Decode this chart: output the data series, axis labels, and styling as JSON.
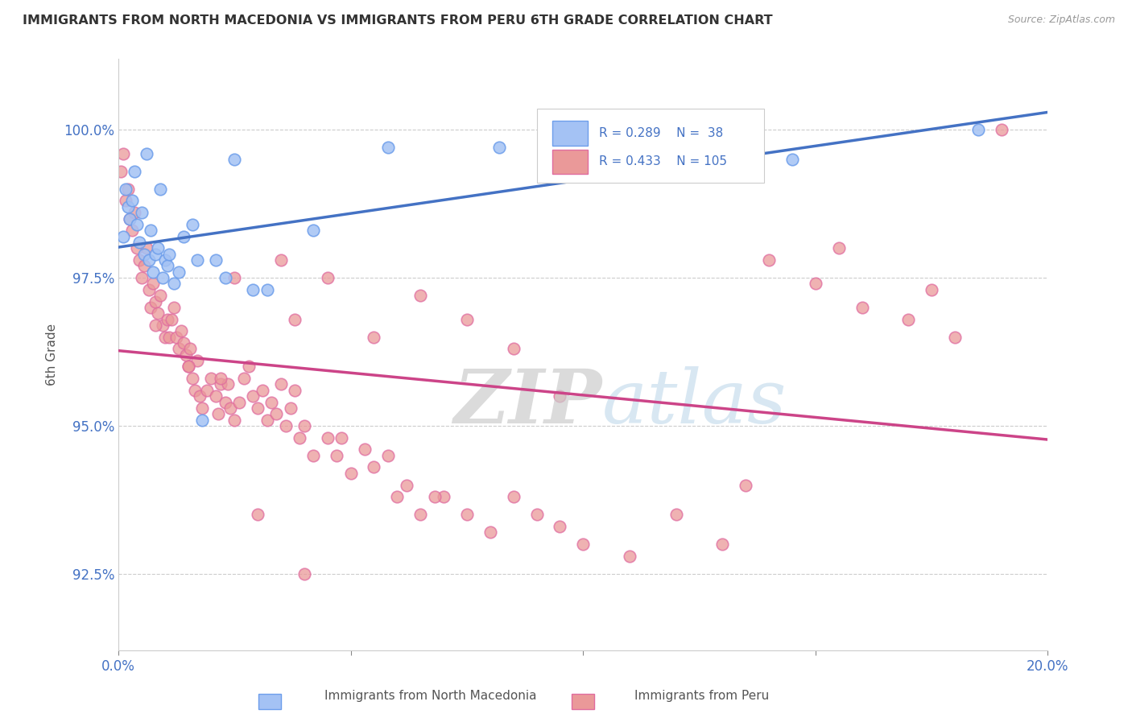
{
  "title": "IMMIGRANTS FROM NORTH MACEDONIA VS IMMIGRANTS FROM PERU 6TH GRADE CORRELATION CHART",
  "source": "Source: ZipAtlas.com",
  "ylabel": "6th Grade",
  "yaxis_values": [
    92.5,
    95.0,
    97.5,
    100.0
  ],
  "xlim": [
    0.0,
    20.0
  ],
  "ylim": [
    91.2,
    101.2
  ],
  "legend_R_blue": "0.289",
  "legend_N_blue": "38",
  "legend_R_pink": "0.433",
  "legend_N_pink": "105",
  "blue_color": "#a4c2f4",
  "pink_color": "#ea9999",
  "blue_edge": "#6d9eeb",
  "pink_edge": "#e06c9f",
  "trendline_blue": "#4472c4",
  "trendline_pink": "#cc4488",
  "blue_scatter_x": [
    0.1,
    0.15,
    0.2,
    0.25,
    0.3,
    0.35,
    0.4,
    0.45,
    0.5,
    0.55,
    0.6,
    0.65,
    0.7,
    0.75,
    0.8,
    0.85,
    0.9,
    0.95,
    1.0,
    1.05,
    1.1,
    1.2,
    1.3,
    1.4,
    1.6,
    1.7,
    1.8,
    2.1,
    2.3,
    2.5,
    2.9,
    3.2,
    4.2,
    5.8,
    8.2,
    9.5,
    14.5,
    18.5
  ],
  "blue_scatter_y": [
    98.2,
    99.0,
    98.7,
    98.5,
    98.8,
    99.3,
    98.4,
    98.1,
    98.6,
    97.9,
    99.6,
    97.8,
    98.3,
    97.6,
    97.9,
    98.0,
    99.0,
    97.5,
    97.8,
    97.7,
    97.9,
    97.4,
    97.6,
    98.2,
    98.4,
    97.8,
    95.1,
    97.8,
    97.5,
    99.5,
    97.3,
    97.3,
    98.3,
    99.7,
    99.7,
    99.8,
    99.5,
    100.0
  ],
  "pink_scatter_x": [
    0.05,
    0.1,
    0.15,
    0.2,
    0.25,
    0.3,
    0.35,
    0.4,
    0.45,
    0.5,
    0.55,
    0.6,
    0.65,
    0.7,
    0.75,
    0.8,
    0.85,
    0.9,
    0.95,
    1.0,
    1.05,
    1.1,
    1.15,
    1.2,
    1.25,
    1.3,
    1.35,
    1.4,
    1.45,
    1.5,
    1.55,
    1.6,
    1.65,
    1.7,
    1.75,
    1.8,
    1.9,
    2.0,
    2.1,
    2.15,
    2.2,
    2.3,
    2.35,
    2.4,
    2.5,
    2.6,
    2.7,
    2.8,
    2.9,
    3.0,
    3.1,
    3.2,
    3.3,
    3.4,
    3.5,
    3.6,
    3.7,
    3.8,
    3.9,
    4.0,
    4.2,
    4.5,
    4.7,
    5.0,
    5.3,
    5.5,
    5.8,
    6.0,
    6.2,
    6.5,
    7.0,
    7.5,
    8.0,
    8.5,
    9.0,
    9.5,
    10.0,
    11.0,
    12.0,
    13.0,
    14.0,
    15.0,
    16.0,
    17.0,
    18.0,
    19.0,
    3.8,
    4.5,
    5.5,
    6.5,
    7.5,
    8.5,
    2.5,
    3.5,
    4.8,
    0.8,
    1.5,
    2.2,
    3.0,
    4.0,
    6.8,
    9.5,
    13.5,
    15.5,
    17.5
  ],
  "pink_scatter_y": [
    99.3,
    99.6,
    98.8,
    99.0,
    98.5,
    98.3,
    98.6,
    98.0,
    97.8,
    97.5,
    97.7,
    98.0,
    97.3,
    97.0,
    97.4,
    97.1,
    96.9,
    97.2,
    96.7,
    96.5,
    96.8,
    96.5,
    96.8,
    97.0,
    96.5,
    96.3,
    96.6,
    96.4,
    96.2,
    96.0,
    96.3,
    95.8,
    95.6,
    96.1,
    95.5,
    95.3,
    95.6,
    95.8,
    95.5,
    95.2,
    95.7,
    95.4,
    95.7,
    95.3,
    95.1,
    95.4,
    95.8,
    96.0,
    95.5,
    95.3,
    95.6,
    95.1,
    95.4,
    95.2,
    95.7,
    95.0,
    95.3,
    95.6,
    94.8,
    95.0,
    94.5,
    94.8,
    94.5,
    94.2,
    94.6,
    94.3,
    94.5,
    93.8,
    94.0,
    93.5,
    93.8,
    93.5,
    93.2,
    93.8,
    93.5,
    93.3,
    93.0,
    92.8,
    93.5,
    93.0,
    97.8,
    97.4,
    97.0,
    96.8,
    96.5,
    100.0,
    96.8,
    97.5,
    96.5,
    97.2,
    96.8,
    96.3,
    97.5,
    97.8,
    94.8,
    96.7,
    96.0,
    95.8,
    93.5,
    92.5,
    93.8,
    95.5,
    94.0,
    98.0,
    97.3
  ]
}
